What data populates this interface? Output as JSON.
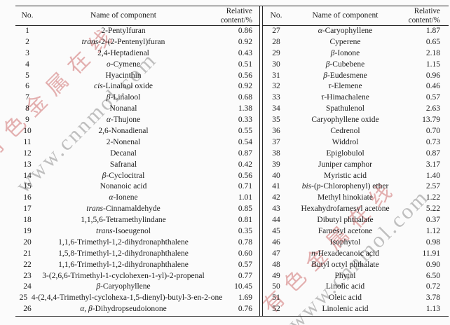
{
  "page": {
    "background": "#fbfbfb",
    "text_color": "#1c1c1c",
    "rule_color": "#262626"
  },
  "watermark": {
    "chinese_text": "有色金属在线",
    "url_text": "www.cnnmol.com",
    "chinese_color": "#d98f8f",
    "url_color": "#9e9e9e"
  },
  "table": {
    "headers": {
      "no": "No.",
      "name": "Name of component",
      "relative_line1": "Relative",
      "relative_line2": "content/%"
    },
    "left_rows": [
      {
        "no": "1",
        "name": "2-Pentylfuran",
        "content": "0.86"
      },
      {
        "no": "2",
        "name": "trans-2-(2-Pentenyl)furan",
        "content": "0.92"
      },
      {
        "no": "3",
        "name": "2,4-Heptadienal",
        "content": "0.43"
      },
      {
        "no": "4",
        "name": "o-Cymene",
        "content": "0.51"
      },
      {
        "no": "5",
        "name": "Hyacinthin",
        "content": "0.56"
      },
      {
        "no": "6",
        "name": "cis-Linalool oxide",
        "content": "0.92"
      },
      {
        "no": "7",
        "name": "β-Linalool",
        "content": "0.68"
      },
      {
        "no": "8",
        "name": "Nonanal",
        "content": "1.38"
      },
      {
        "no": "9",
        "name": "α-Thujone",
        "content": "0.33"
      },
      {
        "no": "10",
        "name": "2,6-Nonadienal",
        "content": "0.55"
      },
      {
        "no": "11",
        "name": "2-Nonenal",
        "content": "0.54"
      },
      {
        "no": "12",
        "name": "Decanal",
        "content": "0.87"
      },
      {
        "no": "13",
        "name": "Safranal",
        "content": "0.42"
      },
      {
        "no": "14",
        "name": "β-Cyclocitral",
        "content": "0.56"
      },
      {
        "no": "15",
        "name": "Nonanoic acid",
        "content": "0.71"
      },
      {
        "no": "16",
        "name": "α-Ionene",
        "content": "1.01"
      },
      {
        "no": "17",
        "name": "trans-Cinnamaldehyde",
        "content": "0.85"
      },
      {
        "no": "18",
        "name": "1,1,5,6-Tetramethylindane",
        "content": "0.81"
      },
      {
        "no": "19",
        "name": "trans-Isoeugenol",
        "content": "0.35"
      },
      {
        "no": "20",
        "name": "1,1,6-Trimethyl-1,2-dihydronaphthalene",
        "content": "0.78"
      },
      {
        "no": "21",
        "name": "1,5,8-Trimethyl-1,2-dihydronaphthalene",
        "content": "0.60"
      },
      {
        "no": "22",
        "name": "1,1,6-Trimethyl-1,2-dihydronaphthalene",
        "content": "0.57"
      },
      {
        "no": "23",
        "name": "3-(2,6,6-Trimethyl-1-cyclohexen-1-yl)-2-propenal",
        "content": "0.77"
      },
      {
        "no": "24",
        "name": "β-Caryophyllene",
        "content": "10.45"
      },
      {
        "no": "25",
        "name": "4-(2,4,4-Trimethyl-cyclohexa-1,5-dienyl)-butyl-3-en-2-one",
        "content": "1.69"
      },
      {
        "no": "26",
        "name": "α, β-Dihydropseudoionone",
        "content": "0.76"
      }
    ],
    "right_rows": [
      {
        "no": "27",
        "name": "α-Caryophyllene",
        "content": "1.87"
      },
      {
        "no": "28",
        "name": "Cyperene",
        "content": "0.65"
      },
      {
        "no": "29",
        "name": "β-Ionone",
        "content": "2.18"
      },
      {
        "no": "30",
        "name": "β-Cubebene",
        "content": "1.15"
      },
      {
        "no": "31",
        "name": "β-Eudesmene",
        "content": "0.96"
      },
      {
        "no": "32",
        "name": "τ-Elemene",
        "content": "0.46"
      },
      {
        "no": "33",
        "name": "τ-Himachalene",
        "content": "0.57"
      },
      {
        "no": "34",
        "name": "Spathulenol",
        "content": "2.63"
      },
      {
        "no": "35",
        "name": "Caryophyllene oxide",
        "content": "13.79"
      },
      {
        "no": "36",
        "name": "Cedrenol",
        "content": "0.70"
      },
      {
        "no": "37",
        "name": "Widdrol",
        "content": "0.73"
      },
      {
        "no": "38",
        "name": "Epiglobulol",
        "content": "0.87"
      },
      {
        "no": "39",
        "name": "Juniper camphor",
        "content": "3.17"
      },
      {
        "no": "40",
        "name": "Myristic acid",
        "content": "1.40"
      },
      {
        "no": "41",
        "name": "bis-(p-Chlorophenyl) ether",
        "content": "2.57"
      },
      {
        "no": "42",
        "name": "Methyl hinokiate",
        "content": "1.22"
      },
      {
        "no": "43",
        "name": "Hexahydrofarnesyl acetone",
        "content": "5.22"
      },
      {
        "no": "44",
        "name": "Dibutyl phthalate",
        "content": "0.37"
      },
      {
        "no": "45",
        "name": "Farnesyl acetone",
        "content": "1.12"
      },
      {
        "no": "46",
        "name": "Isophytol",
        "content": "0.98"
      },
      {
        "no": "47",
        "name": "n-Hexadecanoic acid",
        "content": "11.91"
      },
      {
        "no": "48",
        "name": "Butyl octyl phthalate",
        "content": "0.90"
      },
      {
        "no": "49",
        "name": "Phytol",
        "content": "6.50"
      },
      {
        "no": "50",
        "name": "Linolic acid",
        "content": "0.72"
      },
      {
        "no": "51",
        "name": "Oleic acid",
        "content": "3.78"
      },
      {
        "no": "52",
        "name": "Linolenic acid",
        "content": "1.13"
      }
    ]
  }
}
